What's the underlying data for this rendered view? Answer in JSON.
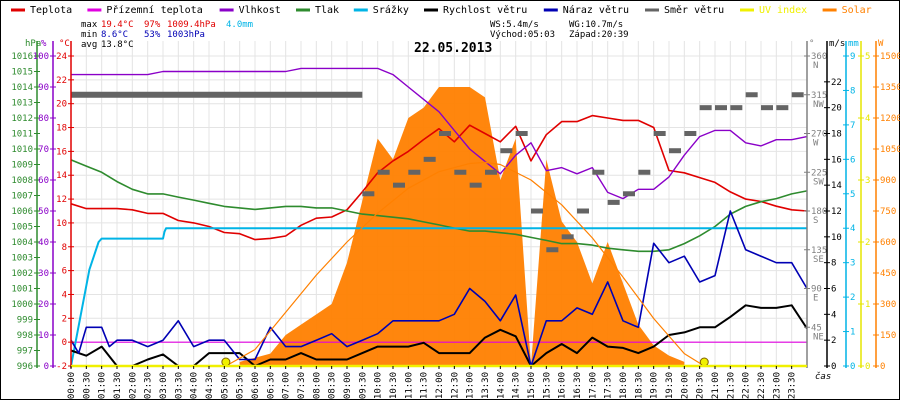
{
  "chart_data": {
    "type": "line",
    "title": "22.05.2013",
    "xlabel": "čas",
    "legend_position": "top",
    "legend": [
      {
        "name": "Teplota",
        "color": "#e00000"
      },
      {
        "name": "Přízemní teplota",
        "color": "#e000e0"
      },
      {
        "name": "Vlhkost",
        "color": "#8a00c8"
      },
      {
        "name": "Tlak",
        "color": "#2e8b2e"
      },
      {
        "name": "Srážky",
        "color": "#00b4e6"
      },
      {
        "name": "Rychlost větru",
        "color": "#000000"
      },
      {
        "name": "Náraz větru",
        "color": "#0000b4"
      },
      {
        "name": "Směr větru",
        "color": "#646464"
      },
      {
        "name": "UV index",
        "color": "#f0f000"
      },
      {
        "name": "Solar",
        "color": "#ff8000"
      }
    ],
    "stats": {
      "max_label": "max",
      "min_label": "min",
      "avg_label": "avg",
      "temp_max": "19.4°C",
      "hum_max": "97%",
      "press_max": "1009.4hPa",
      "rain_total": "4.0mm",
      "temp_min": "8.6°C",
      "hum_min": "53%",
      "press_min": "1003hPa",
      "temp_avg": "13.8°C",
      "ws": "WS:5.4m/s",
      "wg": "WG:10.7m/s",
      "sunrise": "Východ:05:03",
      "sunset": "Západ:20:39"
    },
    "x_ticks": [
      "00:00",
      "00:30",
      "01:00",
      "01:30",
      "02:00",
      "02:30",
      "03:00",
      "03:30",
      "04:00",
      "04:30",
      "05:00",
      "05:30",
      "06:00",
      "06:30",
      "07:00",
      "07:30",
      "08:00",
      "08:30",
      "09:00",
      "09:30",
      "10:00",
      "10:30",
      "11:00",
      "11:30",
      "12:00",
      "12:30",
      "13:00",
      "13:30",
      "14:00",
      "14:30",
      "15:00",
      "15:30",
      "16:00",
      "16:30",
      "17:00",
      "17:30",
      "18:00",
      "18:30",
      "19:00",
      "19:30",
      "20:00",
      "20:30",
      "21:00",
      "21:30",
      "22:00",
      "22:30",
      "23:00",
      "23:30"
    ],
    "axes": {
      "pressure": {
        "unit": "hPa",
        "range": [
          996,
          1016
        ],
        "ticks": [
          "1016",
          "1015",
          "1014",
          "1013",
          "1012",
          "1011",
          "1010",
          "1009",
          "1008",
          "1007",
          "1006",
          "1005",
          "1004",
          "1003",
          "1002",
          "1001",
          "1000",
          "999",
          "998",
          "997",
          "996"
        ]
      },
      "humidity": {
        "unit": "%",
        "range": [
          0,
          100
        ],
        "ticks": [
          "100",
          "90",
          "80",
          "70",
          "60",
          "50",
          "40",
          "30",
          "20",
          "10",
          "0"
        ]
      },
      "temperature": {
        "unit": "°C",
        "range": [
          -2,
          24
        ],
        "ticks": [
          "24",
          "22",
          "20",
          "18",
          "16",
          "14",
          "12",
          "10",
          "8",
          "6",
          "4",
          "2",
          "0",
          "-2"
        ]
      },
      "direction": {
        "unit": "°",
        "range": [
          0,
          360
        ],
        "ticks": [
          {
            "v": "360",
            "c": "N"
          },
          {
            "v": "315",
            "c": "NW"
          },
          {
            "v": "270",
            "c": "W"
          },
          {
            "v": "225",
            "c": "SW"
          },
          {
            "v": "180",
            "c": "S"
          },
          {
            "v": "135",
            "c": "SE"
          },
          {
            "v": "90",
            "c": "E"
          },
          {
            "v": "45",
            "c": "NE"
          }
        ]
      },
      "wind": {
        "unit": "m/s",
        "range": [
          0,
          24
        ],
        "ticks": [
          "22",
          "20",
          "18",
          "16",
          "14",
          "12",
          "10",
          "8",
          "6",
          "4",
          "2",
          "0"
        ]
      },
      "rain": {
        "unit": "mm",
        "range": [
          0,
          9
        ],
        "ticks": [
          "9",
          "8",
          "7",
          "6",
          "5",
          "4",
          "3",
          "2",
          "1",
          "0"
        ]
      },
      "uv": {
        "unit": "",
        "range": [
          0,
          5
        ],
        "ticks": [
          "5",
          "4",
          "3",
          "2",
          "1",
          "0"
        ]
      },
      "solar": {
        "unit": "W",
        "range": [
          0,
          1500
        ],
        "ticks": [
          "1500",
          "1350",
          "1200",
          "1050",
          "900",
          "750",
          "600",
          "450",
          "300",
          "150",
          "0"
        ]
      }
    },
    "series": [
      {
        "name": "Teplota",
        "unit": "°C",
        "x_hours": [
          0,
          0.5,
          1,
          1.5,
          2,
          2.5,
          3,
          3.5,
          4,
          4.5,
          5,
          5.5,
          6,
          6.5,
          7,
          7.5,
          8,
          8.5,
          9,
          9.5,
          10,
          10.5,
          11,
          11.5,
          12,
          12.5,
          13,
          13.5,
          14,
          14.5,
          15,
          15.5,
          16,
          16.5,
          17,
          17.5,
          18,
          18.5,
          19,
          19.5,
          20,
          20.5,
          21,
          21.5,
          22,
          22.5,
          23,
          23.5,
          24
        ],
        "values": [
          11.6,
          11.2,
          11.2,
          11.2,
          11.1,
          10.8,
          10.8,
          10.2,
          10.0,
          9.7,
          9.2,
          9.1,
          8.6,
          8.7,
          8.9,
          9.8,
          10.4,
          10.5,
          11.1,
          12.6,
          14.2,
          15.2,
          16.0,
          17.0,
          17.9,
          16.8,
          18.2,
          17.5,
          16.8,
          18.1,
          15.2,
          17.4,
          18.5,
          18.5,
          19.0,
          18.8,
          18.6,
          18.6,
          18.0,
          14.4,
          14.2,
          13.8,
          13.4,
          12.6,
          12.0,
          11.8,
          11.4,
          11.1,
          11.0
        ]
      },
      {
        "name": "Přízemní teplota",
        "unit": "°C",
        "x_hours": [
          0,
          24
        ],
        "values": [
          0.0,
          0.0
        ]
      },
      {
        "name": "Vlhkost",
        "unit": "%",
        "x_hours": [
          0,
          0.5,
          1,
          1.5,
          2,
          2.5,
          3,
          3.5,
          4,
          4.5,
          5,
          5.5,
          6,
          6.5,
          7,
          7.5,
          8,
          8.5,
          9,
          9.5,
          10,
          10.5,
          11,
          11.5,
          12,
          12.5,
          13,
          13.5,
          14,
          14.5,
          15,
          15.5,
          16,
          16.5,
          17,
          17.5,
          18,
          18.5,
          19,
          19.5,
          20,
          20.5,
          21,
          21.5,
          22,
          22.5,
          23,
          23.5,
          24
        ],
        "values": [
          94,
          94,
          94,
          94,
          94,
          94,
          95,
          95,
          95,
          95,
          95,
          95,
          95,
          95,
          95,
          96,
          96,
          96,
          96,
          96,
          96,
          94,
          90,
          86,
          82,
          76,
          70,
          66,
          62,
          68,
          72,
          63,
          64,
          62,
          64,
          56,
          54,
          57,
          57,
          61,
          68,
          74,
          76,
          76,
          72,
          71,
          73,
          73,
          74
        ]
      },
      {
        "name": "Tlak",
        "unit": "hPa",
        "x_hours": [
          0,
          0.5,
          1,
          1.5,
          2,
          2.5,
          3,
          3.5,
          4,
          4.5,
          5,
          5.5,
          6,
          6.5,
          7,
          7.5,
          8,
          8.5,
          9,
          9.5,
          10,
          10.5,
          11,
          11.5,
          12,
          12.5,
          13,
          13.5,
          14,
          14.5,
          15,
          15.5,
          16,
          16.5,
          17,
          17.5,
          18,
          18.5,
          19,
          19.5,
          20,
          20.5,
          21,
          21.5,
          22,
          22.5,
          23,
          23.5,
          24
        ],
        "values": [
          1009.3,
          1008.9,
          1008.5,
          1007.9,
          1007.4,
          1007.1,
          1007.1,
          1006.9,
          1006.7,
          1006.5,
          1006.3,
          1006.2,
          1006.1,
          1006.2,
          1006.3,
          1006.3,
          1006.2,
          1006.2,
          1006.0,
          1005.8,
          1005.7,
          1005.6,
          1005.5,
          1005.3,
          1005.1,
          1004.9,
          1004.7,
          1004.7,
          1004.6,
          1004.5,
          1004.3,
          1004.1,
          1003.9,
          1003.9,
          1003.8,
          1003.6,
          1003.5,
          1003.4,
          1003.4,
          1003.5,
          1003.9,
          1004.4,
          1005.0,
          1005.8,
          1006.3,
          1006.6,
          1006.8,
          1007.1,
          1007.3
        ]
      },
      {
        "name": "Srážky",
        "unit": "mm",
        "x_hours": [
          0,
          0.3,
          0.6,
          0.9,
          1.0,
          3.0,
          3.05,
          3.1,
          24
        ],
        "values": [
          0,
          1.4,
          2.8,
          3.6,
          3.7,
          3.7,
          3.9,
          4.0,
          4.0
        ]
      },
      {
        "name": "Rychlost větru",
        "unit": "m/s",
        "x_hours": [
          0,
          0.5,
          1,
          1.5,
          2,
          2.5,
          3,
          3.5,
          4,
          4.5,
          5,
          5.5,
          6,
          6.5,
          7,
          7.5,
          8,
          8.5,
          9,
          9.5,
          10,
          10.5,
          11,
          11.5,
          12,
          12.5,
          13,
          13.5,
          14,
          14.5,
          15,
          15.5,
          16,
          16.5,
          17,
          17.5,
          18,
          18.5,
          19,
          19.5,
          20,
          20.5,
          21,
          21.5,
          22,
          22.5,
          23,
          23.5,
          24
        ],
        "values": [
          1.2,
          0.8,
          1.5,
          0.0,
          0.0,
          0.5,
          0.9,
          0.0,
          0.0,
          1.0,
          1.0,
          1.0,
          0.0,
          0.5,
          0.5,
          1.0,
          0.5,
          0.5,
          0.5,
          1.0,
          1.5,
          1.5,
          1.5,
          1.8,
          1.0,
          1.0,
          1.0,
          2.2,
          2.8,
          2.3,
          0.0,
          1.0,
          1.7,
          1.0,
          2.2,
          1.5,
          1.4,
          1.0,
          1.5,
          2.4,
          2.6,
          3.0,
          3.0,
          3.8,
          4.7,
          4.5,
          4.5,
          4.7,
          2.9
        ]
      },
      {
        "name": "Náraz větru",
        "unit": "m/s",
        "x_hours": [
          0,
          0.25,
          0.5,
          1,
          1.25,
          1.5,
          2,
          2.5,
          3,
          3.5,
          4,
          4.5,
          5,
          5.5,
          6,
          6.5,
          7,
          7.5,
          8,
          8.5,
          9,
          9.5,
          10,
          10.5,
          11,
          11.5,
          12,
          12.5,
          13,
          13.5,
          14,
          14.5,
          15,
          15.5,
          16,
          16.5,
          17,
          17.5,
          18,
          18.5,
          19,
          19.5,
          20,
          20.5,
          21,
          21.5,
          22,
          22.5,
          23,
          23.5,
          24
        ],
        "values": [
          2.0,
          1.0,
          3.0,
          3.0,
          1.5,
          2.0,
          2.0,
          1.5,
          2.0,
          3.5,
          1.5,
          2.0,
          2.0,
          0.5,
          0.5,
          3.0,
          1.5,
          1.5,
          2.0,
          2.5,
          1.5,
          2.0,
          2.5,
          3.5,
          3.5,
          3.5,
          3.5,
          4.0,
          6.0,
          5.0,
          3.5,
          5.5,
          0.0,
          3.5,
          3.5,
          4.5,
          4.0,
          6.5,
          3.5,
          3.0,
          9.5,
          8.0,
          8.5,
          6.5,
          7.0,
          12.0,
          9.0,
          8.5,
          8.0,
          8.0,
          6.0
        ]
      },
      {
        "name": "UV index",
        "unit": "",
        "x_hours": [
          0,
          24
        ],
        "values": [
          0,
          0
        ]
      },
      {
        "name": "Solar (max possible)",
        "unit": "W",
        "x_hours": [
          5.05,
          6,
          7,
          8,
          9,
          10,
          11,
          12,
          13,
          13.5,
          14,
          15,
          16,
          17,
          18,
          19,
          20,
          20.65
        ],
        "values": [
          0,
          80,
          260,
          440,
          600,
          740,
          860,
          940,
          980,
          985,
          975,
          900,
          780,
          620,
          430,
          230,
          60,
          0
        ]
      },
      {
        "name": "Solar",
        "unit": "W",
        "x_hours": [
          5.5,
          6,
          6.5,
          7,
          7.5,
          8,
          8.5,
          9,
          9.5,
          10,
          10.5,
          11,
          11.5,
          12,
          12.5,
          13,
          13.5,
          14,
          14.5,
          15,
          15.5,
          16,
          16.5,
          17,
          17.5,
          18,
          18.5,
          19,
          19.5,
          20
        ],
        "values": [
          20,
          40,
          60,
          150,
          200,
          250,
          300,
          500,
          800,
          1100,
          1000,
          1200,
          1250,
          1350,
          1350,
          1350,
          1300,
          900,
          1100,
          0,
          1000,
          700,
          600,
          400,
          600,
          400,
          200,
          100,
          50,
          20
        ]
      }
    ],
    "markers": [
      {
        "name": "sunrise",
        "hour": 5.05,
        "label": "Východ:05:03"
      },
      {
        "name": "sunset",
        "hour": 20.65,
        "label": "Západ:20:39"
      }
    ],
    "wind_direction_deg": {
      "x_hours": [
        0,
        0.5,
        1,
        2,
        3,
        4,
        5,
        6,
        7,
        8,
        9,
        9.5,
        10,
        10.5,
        11,
        11.5,
        12,
        12.5,
        13,
        13.5,
        14,
        14.5,
        15,
        15.5,
        16,
        16.5,
        17,
        17.5,
        18,
        18.5,
        19,
        19.5,
        20,
        20.5,
        21,
        21.5,
        22,
        22.5,
        23,
        23.5
      ],
      "values": [
        315,
        315,
        315,
        315,
        315,
        315,
        315,
        315,
        315,
        315,
        315,
        200,
        225,
        210,
        225,
        240,
        270,
        225,
        210,
        225,
        250,
        270,
        180,
        135,
        150,
        180,
        225,
        190,
        200,
        225,
        270,
        250,
        270,
        300,
        300,
        300,
        315,
        300,
        300,
        315
      ]
    }
  }
}
